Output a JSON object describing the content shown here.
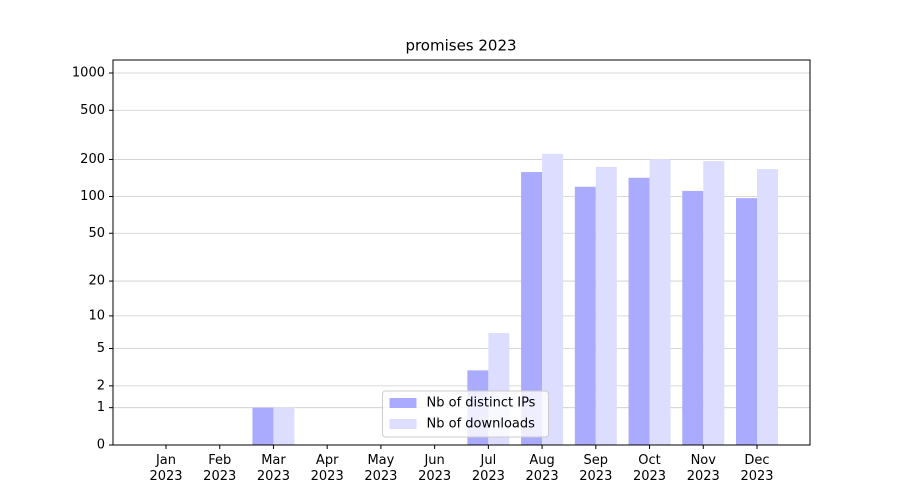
{
  "chart_data": {
    "type": "bar",
    "title": "promises 2023",
    "categories": [
      "Jan\n2023",
      "Feb\n2023",
      "Mar\n2023",
      "Apr\n2023",
      "May\n2023",
      "Jun\n2023",
      "Jul\n2023",
      "Aug\n2023",
      "Sep\n2023",
      "Oct\n2023",
      "Nov\n2023",
      "Dec\n2023"
    ],
    "series": [
      {
        "name": "Nb of distinct IPs",
        "color": "#aaaaff",
        "values": [
          0,
          0,
          1,
          0,
          0,
          0,
          3,
          158,
          120,
          142,
          111,
          97
        ]
      },
      {
        "name": "Nb of downloads",
        "color": "#ddddff",
        "values": [
          0,
          0,
          1,
          0,
          0,
          0,
          7,
          222,
          174,
          201,
          194,
          167
        ]
      }
    ],
    "yscale": "log1p",
    "ylim": [
      0,
      1273
    ],
    "yticks": [
      0,
      1,
      2,
      5,
      10,
      20,
      50,
      100,
      200,
      500,
      1000
    ],
    "grid": true,
    "legend": "lower center"
  }
}
